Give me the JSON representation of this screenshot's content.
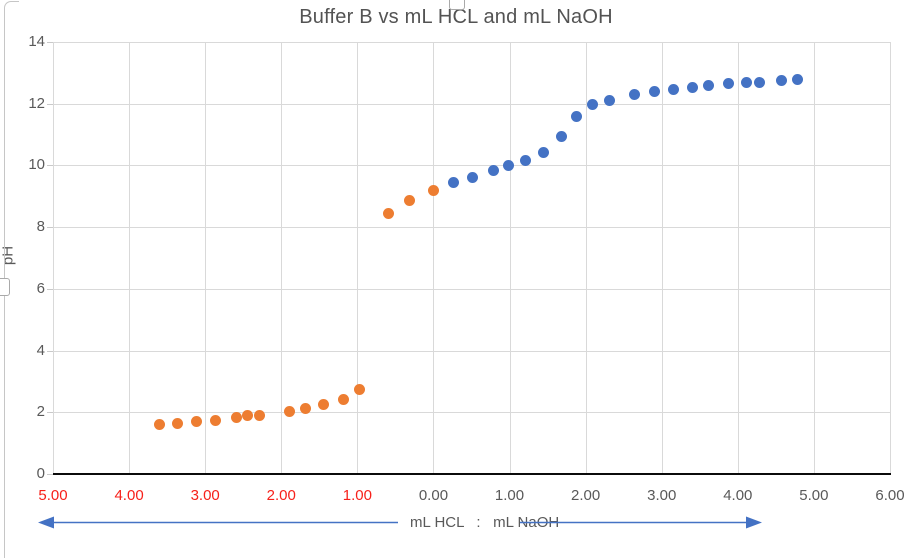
{
  "colors": {
    "grid": "#d9d9d9",
    "axis_line": "#0b0b0b",
    "label_text": "#595959",
    "negative_tick": "#f7201a",
    "series_hcl_orange": "#ED7D31",
    "series_naoh_blue": "#4472C4",
    "arrow_blue": "#4472C4"
  },
  "chart_data": {
    "type": "scatter",
    "title": "Buffer B vs mL HCL and mL NaOH",
    "xlabel": "mL HCL   :   mL NaOH",
    "ylabel": "pH",
    "xlim": [
      -5,
      6
    ],
    "ylim": [
      0,
      14
    ],
    "grid": true,
    "legend": "none",
    "x_axis_note": "HCL volumes plotted as negative x but labeled with absolute values in red",
    "x_ticks": [
      {
        "label": "5.00",
        "value": -5,
        "negative": true
      },
      {
        "label": "4.00",
        "value": -4,
        "negative": true
      },
      {
        "label": "3.00",
        "value": -3,
        "negative": true
      },
      {
        "label": "2.00",
        "value": -2,
        "negative": true
      },
      {
        "label": "1.00",
        "value": -1,
        "negative": true
      },
      {
        "label": "0.00",
        "value": 0,
        "negative": false
      },
      {
        "label": "1.00",
        "value": 1,
        "negative": false
      },
      {
        "label": "2.00",
        "value": 2,
        "negative": false
      },
      {
        "label": "3.00",
        "value": 3,
        "negative": false
      },
      {
        "label": "4.00",
        "value": 4,
        "negative": false
      },
      {
        "label": "5.00",
        "value": 5,
        "negative": false
      },
      {
        "label": "6.00",
        "value": 6,
        "negative": false
      }
    ],
    "y_ticks": [
      0,
      2,
      4,
      6,
      8,
      10,
      12,
      14
    ],
    "series": [
      {
        "name": "mL HCL",
        "color": "#ED7D31",
        "points": [
          [
            -3.6,
            1.6
          ],
          [
            -3.37,
            1.63
          ],
          [
            -3.12,
            1.71
          ],
          [
            -2.87,
            1.72
          ],
          [
            -2.59,
            1.84
          ],
          [
            -2.44,
            1.9
          ],
          [
            -2.28,
            1.91
          ],
          [
            -1.89,
            2.01
          ],
          [
            -1.68,
            2.11
          ],
          [
            -1.44,
            2.24
          ],
          [
            -1.18,
            2.43
          ],
          [
            -0.97,
            2.73
          ],
          [
            -0.59,
            8.44
          ],
          [
            -0.31,
            8.85
          ],
          [
            0.0,
            9.18
          ]
        ]
      },
      {
        "name": "mL NaOH",
        "color": "#4472C4",
        "points": [
          [
            0.26,
            9.46
          ],
          [
            0.51,
            9.62
          ],
          [
            0.79,
            9.82
          ],
          [
            0.99,
            9.99
          ],
          [
            1.21,
            10.15
          ],
          [
            1.44,
            10.43
          ],
          [
            1.68,
            10.95
          ],
          [
            1.88,
            11.57
          ],
          [
            2.09,
            11.99
          ],
          [
            2.32,
            12.12
          ],
          [
            2.64,
            12.31
          ],
          [
            2.91,
            12.41
          ],
          [
            3.16,
            12.45
          ],
          [
            3.4,
            12.51
          ],
          [
            3.61,
            12.58
          ],
          [
            3.88,
            12.64
          ],
          [
            4.12,
            12.7
          ],
          [
            4.29,
            12.7
          ],
          [
            4.57,
            12.74
          ],
          [
            4.79,
            12.77
          ]
        ]
      }
    ]
  }
}
